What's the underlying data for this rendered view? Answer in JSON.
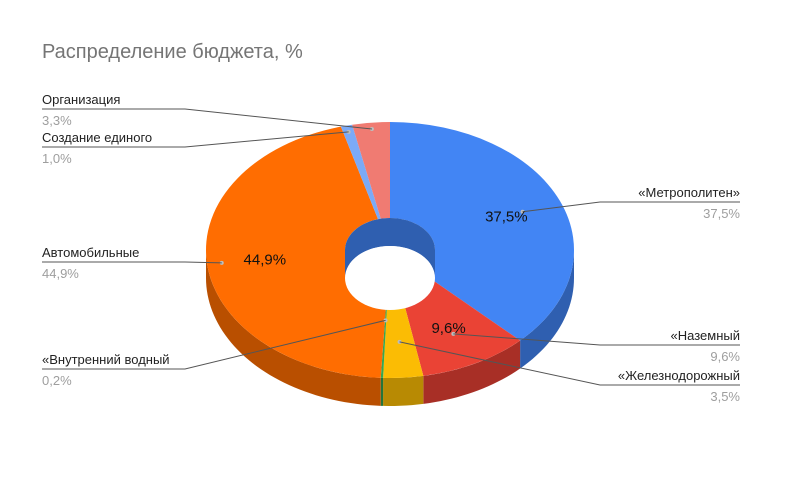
{
  "chart_data": {
    "type": "pie",
    "style": "3d-donut",
    "title": "Распределение бюджета, %",
    "slices": [
      {
        "name": "«Метрополитен»",
        "value": 37.5,
        "label": "37,5%",
        "color": "#4285f4",
        "dark": "#2f5fb0"
      },
      {
        "name": "«Наземный",
        "value": 9.6,
        "label": "9,6%",
        "color": "#ea4335",
        "dark": "#a82f26"
      },
      {
        "name": "«Железнодорожный",
        "value": 3.5,
        "label": "3,5%",
        "color": "#fbbc04",
        "dark": "#b88a03"
      },
      {
        "name": "«Внутренний водный",
        "value": 0.2,
        "label": "0,2%",
        "color": "#34a853",
        "dark": "#24753a"
      },
      {
        "name": "Автомобильные",
        "value": 44.9,
        "label": "44,9%",
        "color": "#ff6d01",
        "dark": "#b94f00"
      },
      {
        "name": "Создание единого",
        "value": 1.0,
        "label": "1,0%",
        "color": "#7baaf7",
        "dark": "#577bb5"
      },
      {
        "name": "Организация",
        "value": 3.3,
        "label": "3,3%",
        "color": "#f07b72",
        "dark": "#b05950"
      }
    ],
    "inside_labels": [
      {
        "slice": 0,
        "text": "37,5%"
      },
      {
        "slice": 1,
        "text": "9,6%"
      },
      {
        "slice": 4,
        "text": "44,9%"
      }
    ],
    "legend": "none (callout labels)"
  }
}
